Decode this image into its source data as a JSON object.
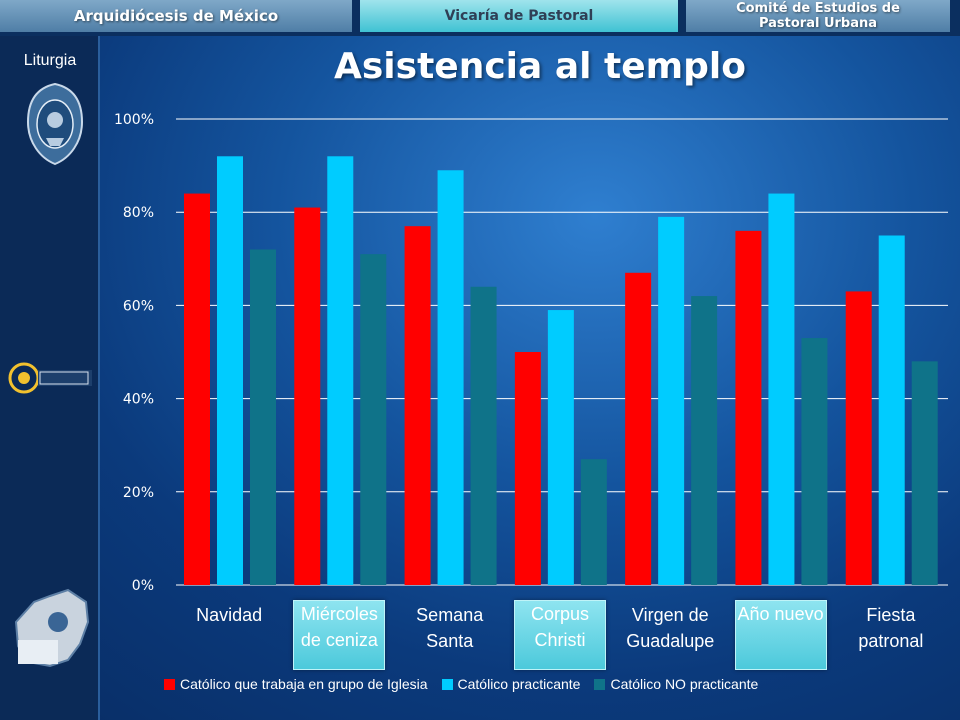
{
  "banner": {
    "left": "Arquidiócesis de México",
    "center": "Vicaría de Pastoral",
    "right_line1": "Comité de Estudios de",
    "right_line2": "Pastoral Urbana"
  },
  "sidebar": {
    "label": "Liturgia",
    "logos": [
      "seal-logo",
      "pastoral-logo",
      "consejo-pastoral-logo"
    ]
  },
  "colors": {
    "series_1": "#ff0000",
    "series_2": "#00ccff",
    "series_3": "#0f7389",
    "highlight": "#5ccfe0"
  },
  "chart_data": {
    "type": "bar",
    "title": "Asistencia al templo",
    "categories": [
      "Navidad",
      "Miércoles\nde ceniza",
      "Semana\nSanta",
      "Corpus\nChristi",
      "Virgen de\nGuadalupe",
      "Año nuevo",
      "Fiesta\npatronal"
    ],
    "highlighted_categories": [
      1,
      3,
      5
    ],
    "series": [
      {
        "name": "Católico que trabaja en grupo de Iglesia",
        "values": [
          84,
          81,
          77,
          50,
          67,
          76,
          63
        ]
      },
      {
        "name": "Católico practicante",
        "values": [
          92,
          92,
          89,
          59,
          79,
          84,
          75
        ]
      },
      {
        "name": "Católico NO practicante",
        "values": [
          72,
          71,
          64,
          27,
          62,
          53,
          48
        ]
      }
    ],
    "ylim": [
      0,
      100
    ],
    "yticks": [
      "0%",
      "20%",
      "40%",
      "60%",
      "80%",
      "100%"
    ],
    "grid": true,
    "legend_position": "bottom"
  }
}
